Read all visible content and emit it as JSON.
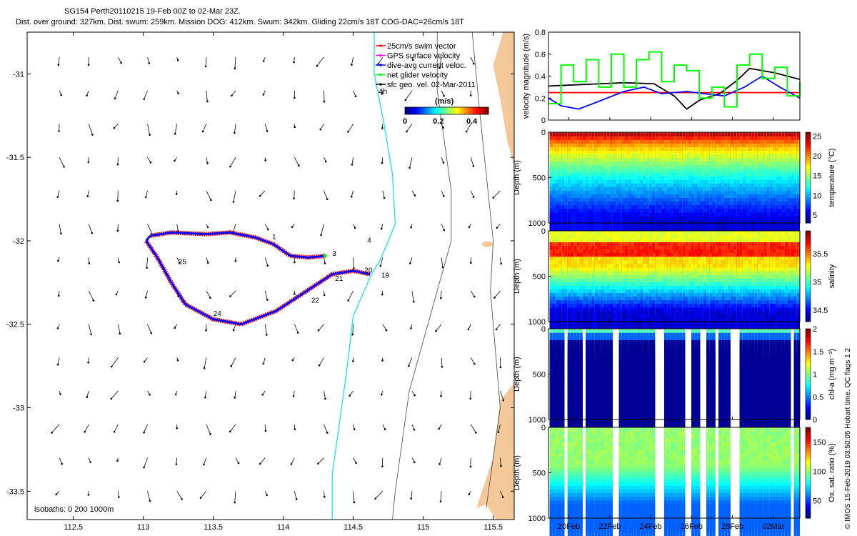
{
  "header": {
    "line1": "SG154 Perth20110215 19-Feb 00Z to 02-Mar 23Z.",
    "line2": "Dist. over ground: 327km. Dist. swum: 259km. Mission DOG: 412km. Swum: 342km. Gliding 22cm/s 18T COG-DAC=26cm/s 18T"
  },
  "credit": "© IMOS 15-Feb-2019 03:50:05 Hobart time. QC flags 1  2",
  "chart_data": [
    {
      "id": "map",
      "type": "scatter",
      "x_ticks": [
        "112.5",
        "113",
        "113.5",
        "114",
        "114.5",
        "115",
        "115.5"
      ],
      "x_tick_values": [
        112.5,
        113,
        113.5,
        114,
        114.5,
        115,
        115.5
      ],
      "y_ticks": [
        "-31",
        "-31.5",
        "-32",
        "-32.5",
        "-33",
        "-33.5"
      ],
      "y_tick_values": [
        -31,
        -31.5,
        -32,
        -32.5,
        -33,
        -33.5
      ],
      "xlim": [
        112.17,
        115.65
      ],
      "ylim": [
        -33.67,
        -30.75
      ],
      "legend": {
        "placement": "top-right",
        "entries": [
          {
            "label": "25cm/s swim vector",
            "color": "#ff0000"
          },
          {
            "label": "GPS surface velocity",
            "color": "#ff00ff"
          },
          {
            "label": "dive-avg current veloc.",
            "color": "#0000ff"
          },
          {
            "label": "net glider velocity",
            "color": "#00ff00"
          },
          {
            "label": "sfc geo. vel. 02-Mar-2011",
            "color": "#000000"
          }
        ]
      },
      "colorbar": {
        "label": "(m/s)",
        "ticks": [
          "0",
          "0.2",
          "0.4"
        ],
        "tick_values": [
          0,
          0.2,
          0.4
        ],
        "range": [
          0,
          0.5
        ]
      },
      "isobath_note": "isobaths: 0   200  1000m",
      "extra_label": "4h",
      "track_upper": [
        [
          113.05,
          -31.97
        ],
        [
          113.2,
          -31.95
        ],
        [
          113.45,
          -31.96
        ],
        [
          113.62,
          -31.95
        ],
        [
          113.8,
          -31.98
        ],
        [
          113.93,
          -32.02
        ],
        [
          114.05,
          -32.09
        ],
        [
          114.18,
          -32.1
        ],
        [
          114.3,
          -32.09
        ]
      ],
      "track_lower": [
        [
          113.02,
          -32.0
        ],
        [
          113.1,
          -32.1
        ],
        [
          113.2,
          -32.25
        ],
        [
          113.3,
          -32.38
        ],
        [
          113.5,
          -32.47
        ],
        [
          113.7,
          -32.5
        ],
        [
          113.95,
          -32.42
        ],
        [
          114.15,
          -32.31
        ],
        [
          114.35,
          -32.2
        ],
        [
          114.5,
          -32.18
        ],
        [
          114.62,
          -32.2
        ]
      ],
      "day_labels": [
        {
          "text": "1",
          "lon": 113.92,
          "lat": -31.99
        },
        {
          "text": "3",
          "lon": 114.35,
          "lat": -32.09
        },
        {
          "text": "4",
          "lon": 114.6,
          "lat": -32.01
        },
        {
          "text": "25",
          "lon": 113.25,
          "lat": -32.14
        },
        {
          "text": "24",
          "lon": 113.5,
          "lat": -32.45
        },
        {
          "text": "22",
          "lon": 114.2,
          "lat": -32.37
        },
        {
          "text": "20",
          "lon": 114.58,
          "lat": -32.19
        },
        {
          "text": "21",
          "lon": 114.37,
          "lat": -32.24
        },
        {
          "text": "19",
          "lon": 114.7,
          "lat": -32.22
        }
      ]
    },
    {
      "id": "velocity",
      "type": "line",
      "ylabel": "velocity magnitude (m/s)",
      "y_ticks": [
        "0",
        "0.2",
        "0.4",
        "0.6",
        "0.8"
      ],
      "y_tick_values": [
        0,
        0.2,
        0.4,
        0.6,
        0.8
      ],
      "ylim": [
        0,
        0.8
      ],
      "xlim": [
        0,
        1
      ],
      "series": [
        {
          "color": "#ff0000",
          "x": [
            0,
            1
          ],
          "y": [
            0.25,
            0.25
          ]
        },
        {
          "color": "#000000",
          "x": [
            0,
            0.1,
            0.3,
            0.42,
            0.5,
            0.55,
            0.6,
            0.68,
            0.75,
            0.8,
            0.9,
            1.0
          ],
          "y": [
            0.31,
            0.32,
            0.34,
            0.33,
            0.22,
            0.1,
            0.18,
            0.24,
            0.36,
            0.47,
            0.43,
            0.37
          ]
        },
        {
          "color": "#0000ff",
          "x": [
            0,
            0.05,
            0.12,
            0.2,
            0.3,
            0.38,
            0.45,
            0.55,
            0.62,
            0.7,
            0.78,
            0.85,
            0.92,
            1.0
          ],
          "y": [
            0.2,
            0.13,
            0.1,
            0.17,
            0.26,
            0.3,
            0.24,
            0.26,
            0.24,
            0.22,
            0.3,
            0.4,
            0.3,
            0.2
          ]
        },
        {
          "color": "#00ff00",
          "x": [
            0,
            0.05,
            0.1,
            0.15,
            0.2,
            0.25,
            0.3,
            0.35,
            0.4,
            0.45,
            0.5,
            0.55,
            0.6,
            0.65,
            0.7,
            0.75,
            0.8,
            0.85,
            0.9,
            0.95,
            1.0
          ],
          "y": [
            0.15,
            0.5,
            0.35,
            0.55,
            0.3,
            0.6,
            0.3,
            0.55,
            0.62,
            0.35,
            0.5,
            0.45,
            0.2,
            0.3,
            0.12,
            0.5,
            0.6,
            0.38,
            0.48,
            0.22,
            0.35
          ]
        }
      ]
    },
    {
      "id": "temperature",
      "type": "heatmap",
      "ylabel": "Depth (m)",
      "y_ticks": [
        "0",
        "500",
        "1000"
      ],
      "y_tick_values": [
        0,
        500,
        1000
      ],
      "ylim": [
        0,
        1000
      ],
      "cbar_label": "temperature (°C)",
      "cbar_ticks": [
        "5",
        "10",
        "15",
        "20",
        "25"
      ],
      "cbar_tick_values": [
        5,
        10,
        15,
        20,
        25
      ],
      "cbar_range": [
        3,
        26
      ]
    },
    {
      "id": "salinity",
      "type": "heatmap",
      "ylabel": "Depth (m)",
      "y_ticks": [
        "0",
        "500",
        "1000"
      ],
      "y_tick_values": [
        0,
        500,
        1000
      ],
      "ylim": [
        0,
        1000
      ],
      "cbar_label": "salinity",
      "cbar_ticks": [
        "34.5",
        "35",
        "35.5"
      ],
      "cbar_tick_values": [
        34.5,
        35,
        35.5
      ],
      "cbar_range": [
        34.3,
        35.9
      ]
    },
    {
      "id": "chla",
      "type": "heatmap",
      "ylabel": "Depth (m)",
      "y_ticks": [
        "0",
        "500",
        "1000"
      ],
      "y_tick_values": [
        0,
        500,
        1000
      ],
      "ylim": [
        0,
        1000
      ],
      "cbar_label": "chl-a (mg m⁻³)",
      "cbar_ticks": [
        "0",
        "0.5",
        "1",
        "1.5",
        "2"
      ],
      "cbar_tick_values": [
        0,
        0.5,
        1,
        1.5,
        2
      ],
      "cbar_range": [
        0,
        2
      ]
    },
    {
      "id": "oxygen",
      "type": "heatmap",
      "ylabel": "Depth (m)",
      "y_ticks": [
        "0",
        "500",
        "1000"
      ],
      "y_tick_values": [
        0,
        500,
        1000
      ],
      "ylim": [
        0,
        1000
      ],
      "cbar_label": "Ox. sat. ratio (%)",
      "cbar_ticks": [
        "50",
        "100",
        "150"
      ],
      "cbar_tick_values": [
        50,
        100,
        150
      ],
      "cbar_range": [
        20,
        175
      ]
    }
  ],
  "time_axis": {
    "ticks": [
      "20Feb",
      "22Feb",
      "24Feb",
      "26Feb",
      "28Feb",
      "02Mar"
    ],
    "tick_values": [
      1,
      3,
      5,
      7,
      9,
      11
    ],
    "range": [
      0,
      12.3
    ]
  }
}
